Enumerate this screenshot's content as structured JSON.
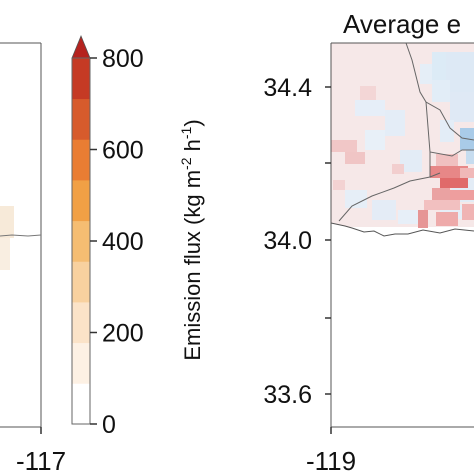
{
  "left_panel": {
    "x_tick_labels": [
      "-117"
    ]
  },
  "colorbar": {
    "label": "Emission flux (kg m",
    "label_exp1": "-2",
    "label_mid": " h",
    "label_exp2": "-1",
    "label_end": ")",
    "tick_labels": [
      "800",
      "600",
      "400",
      "200",
      "0"
    ],
    "range": [
      0,
      800
    ],
    "extend": "max",
    "colors": [
      "#ffffff",
      "#fdf1e4",
      "#fbe3c8",
      "#f8d19f",
      "#f5bd72",
      "#f1a045",
      "#e97d33",
      "#d75b2c",
      "#c53a24"
    ]
  },
  "right_panel": {
    "title": "Average e",
    "y_tick_labels": [
      "34.4",
      "34.0",
      "33.6"
    ],
    "x_tick_labels": [
      "-119"
    ],
    "colors": {
      "increase": "#e06a6a",
      "decrease": "#9ec5e6",
      "neutral": "#f4e4e4",
      "coast": "#555555"
    }
  }
}
